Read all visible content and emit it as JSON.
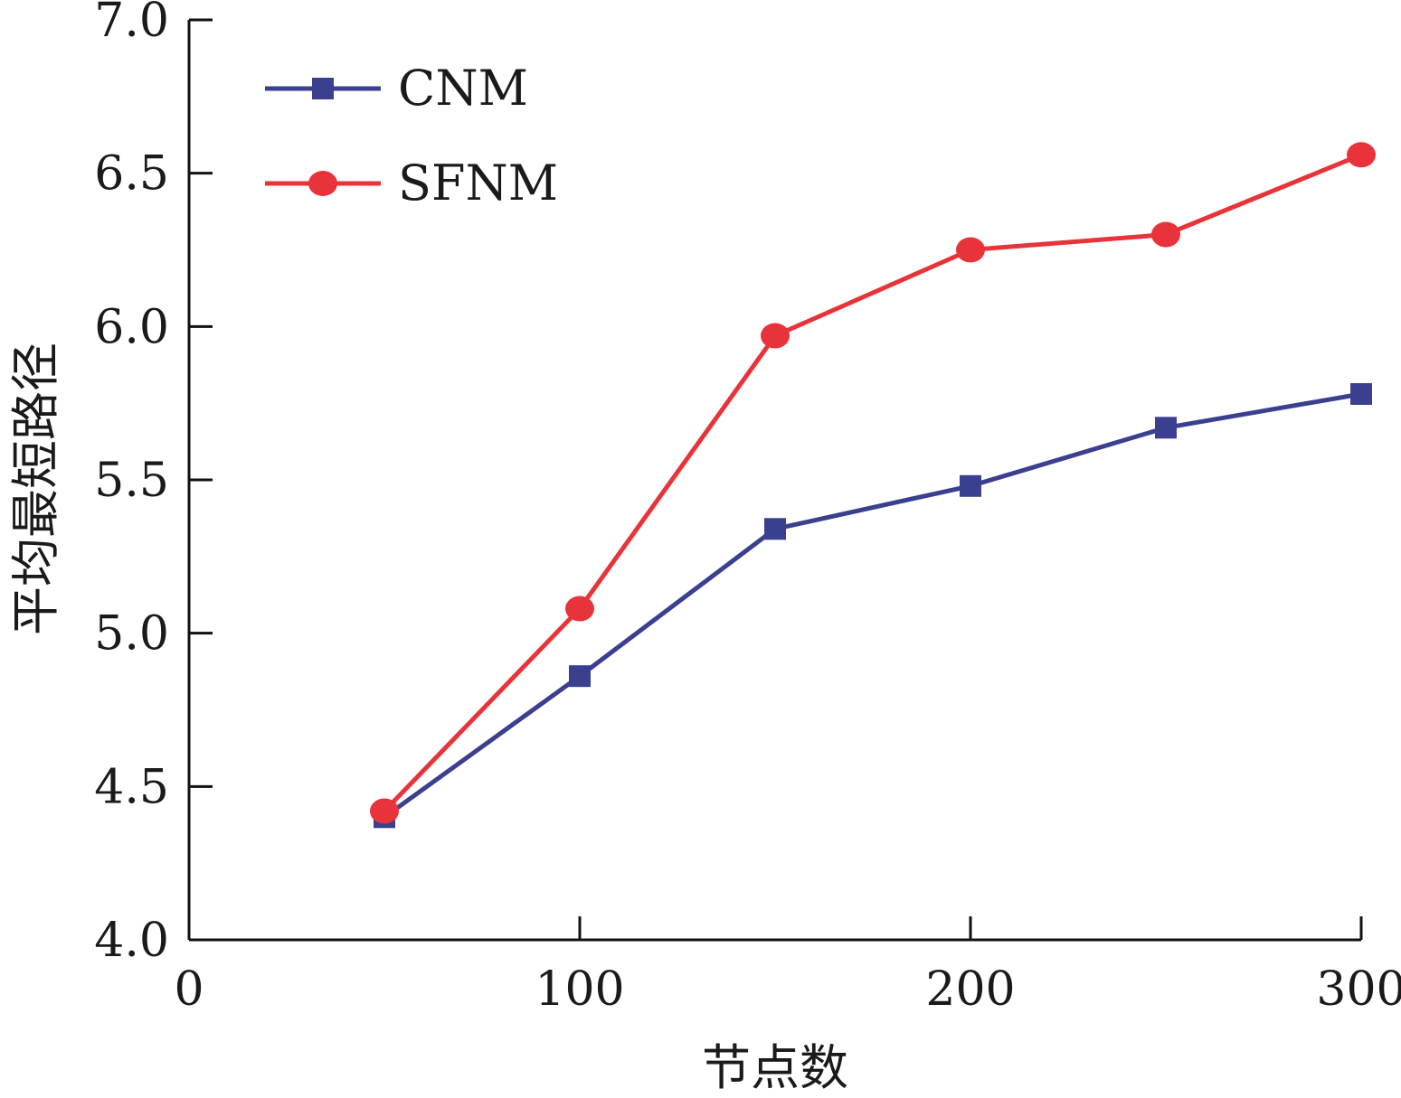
{
  "chart_data": {
    "type": "line",
    "title": "",
    "xlabel": "节点数",
    "ylabel": "平均最短路径",
    "xlim": [
      0,
      300
    ],
    "ylim": [
      4.0,
      7.0
    ],
    "x_ticks": [
      "0",
      "100",
      "200",
      "300"
    ],
    "y_ticks": [
      "4.0",
      "4.5",
      "5.0",
      "5.5",
      "6.0",
      "6.5",
      "7.0"
    ],
    "grid": false,
    "legend_position": "top-left",
    "series": [
      {
        "name": "CNM",
        "color": "#3a3f8f",
        "marker": "square",
        "x": [
          50,
          100,
          150,
          200,
          250,
          300
        ],
        "y": [
          4.4,
          4.86,
          5.34,
          5.48,
          5.67,
          5.78
        ]
      },
      {
        "name": "SFNM",
        "color": "#e8333a",
        "marker": "circle",
        "x": [
          50,
          100,
          150,
          200,
          250,
          300
        ],
        "y": [
          4.42,
          5.08,
          5.97,
          6.25,
          6.3,
          6.56
        ]
      }
    ]
  }
}
